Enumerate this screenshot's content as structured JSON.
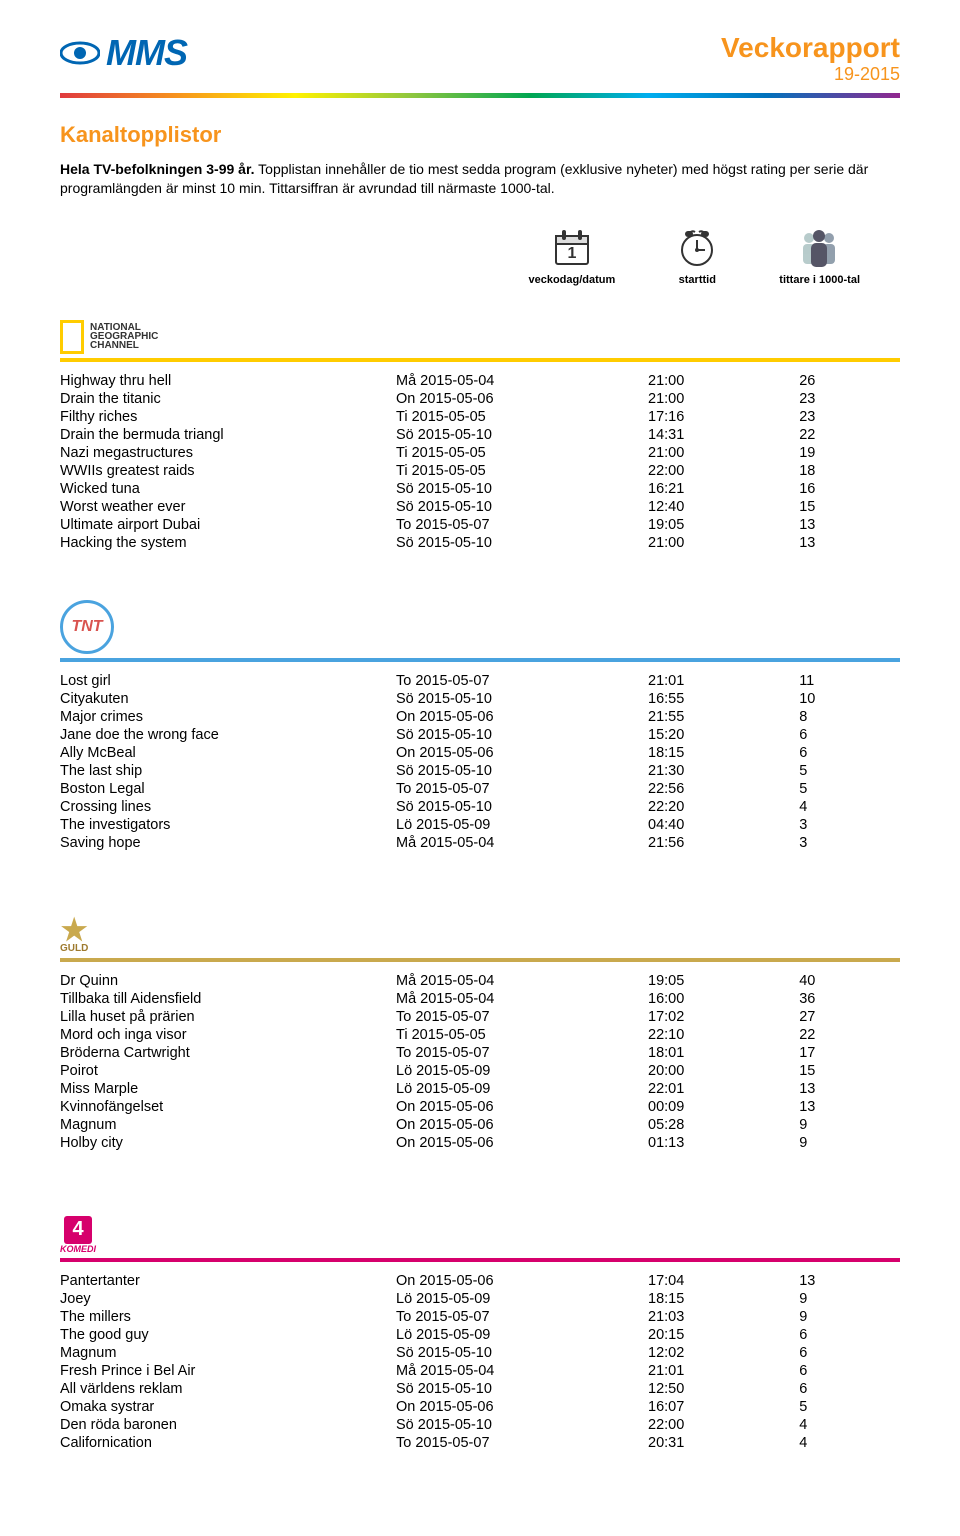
{
  "header": {
    "logo_text": "MMS",
    "report_label": "Veckorapport",
    "report_period": "19-2015",
    "colors": {
      "orange": "#f7941d",
      "blue": "#0066b3"
    }
  },
  "section": {
    "title": "Kanaltopplistor",
    "intro_bold": "Hela TV-befolkningen 3-99 år.",
    "intro_rest": " Topplistan innehåller de tio mest sedda program (exklusive nyheter) med högst rating per serie där programlängden är minst 10 min. Tittarsiffran är avrundad till närmaste 1000-tal."
  },
  "legend": {
    "date_label": "veckodag/datum",
    "time_label": "starttid",
    "viewers_label": "tittare i 1000-tal"
  },
  "channels": [
    {
      "id": "natgeo",
      "divider_color": "#ffcc00",
      "rows": [
        {
          "name": "Highway thru hell",
          "date": "Må 2015-05-04",
          "time": "21:00",
          "viewers": "26"
        },
        {
          "name": "Drain the titanic",
          "date": "On 2015-05-06",
          "time": "21:00",
          "viewers": "23"
        },
        {
          "name": "Filthy riches",
          "date": "Ti 2015-05-05",
          "time": "17:16",
          "viewers": "23"
        },
        {
          "name": "Drain the bermuda triangl",
          "date": "Sö 2015-05-10",
          "time": "14:31",
          "viewers": "22"
        },
        {
          "name": "Nazi megastructures",
          "date": "Ti 2015-05-05",
          "time": "21:00",
          "viewers": "19"
        },
        {
          "name": "WWIIs greatest raids",
          "date": "Ti 2015-05-05",
          "time": "22:00",
          "viewers": "18"
        },
        {
          "name": "Wicked tuna",
          "date": "Sö 2015-05-10",
          "time": "16:21",
          "viewers": "16"
        },
        {
          "name": "Worst weather ever",
          "date": "Sö 2015-05-10",
          "time": "12:40",
          "viewers": "15"
        },
        {
          "name": "Ultimate airport Dubai",
          "date": "To 2015-05-07",
          "time": "19:05",
          "viewers": "13"
        },
        {
          "name": "Hacking the system",
          "date": "Sö 2015-05-10",
          "time": "21:00",
          "viewers": "13"
        }
      ]
    },
    {
      "id": "tnt",
      "divider_color": "#4aa3df",
      "rows": [
        {
          "name": "Lost girl",
          "date": "To 2015-05-07",
          "time": "21:01",
          "viewers": "11"
        },
        {
          "name": "Cityakuten",
          "date": "Sö 2015-05-10",
          "time": "16:55",
          "viewers": "10"
        },
        {
          "name": "Major crimes",
          "date": "On 2015-05-06",
          "time": "21:55",
          "viewers": "8"
        },
        {
          "name": "Jane doe the wrong face",
          "date": "Sö 2015-05-10",
          "time": "15:20",
          "viewers": "6"
        },
        {
          "name": "Ally McBeal",
          "date": "On 2015-05-06",
          "time": "18:15",
          "viewers": "6"
        },
        {
          "name": "The last ship",
          "date": "Sö 2015-05-10",
          "time": "21:30",
          "viewers": "5"
        },
        {
          "name": "Boston Legal",
          "date": "To 2015-05-07",
          "time": "22:56",
          "viewers": "5"
        },
        {
          "name": "Crossing lines",
          "date": "Sö 2015-05-10",
          "time": "22:20",
          "viewers": "4"
        },
        {
          "name": "The investigators",
          "date": "Lö 2015-05-09",
          "time": "04:40",
          "viewers": "3"
        },
        {
          "name": "Saving hope",
          "date": "Må 2015-05-04",
          "time": "21:56",
          "viewers": "3"
        }
      ]
    },
    {
      "id": "guld",
      "divider_color": "#c9a94e",
      "rows": [
        {
          "name": "Dr Quinn",
          "date": "Må 2015-05-04",
          "time": "19:05",
          "viewers": "40"
        },
        {
          "name": "Tillbaka till Aidensfield",
          "date": "Må 2015-05-04",
          "time": "16:00",
          "viewers": "36"
        },
        {
          "name": "Lilla huset på prärien",
          "date": "To 2015-05-07",
          "time": "17:02",
          "viewers": "27"
        },
        {
          "name": "Mord och inga visor",
          "date": "Ti 2015-05-05",
          "time": "22:10",
          "viewers": "22"
        },
        {
          "name": "Bröderna Cartwright",
          "date": "To 2015-05-07",
          "time": "18:01",
          "viewers": "17"
        },
        {
          "name": "Poirot",
          "date": "Lö 2015-05-09",
          "time": "20:00",
          "viewers": "15"
        },
        {
          "name": "Miss Marple",
          "date": "Lö 2015-05-09",
          "time": "22:01",
          "viewers": "13"
        },
        {
          "name": "Kvinnofängelset",
          "date": "On 2015-05-06",
          "time": "00:09",
          "viewers": "13"
        },
        {
          "name": "Magnum",
          "date": "On 2015-05-06",
          "time": "05:28",
          "viewers": "9"
        },
        {
          "name": "Holby city",
          "date": "On 2015-05-06",
          "time": "01:13",
          "viewers": "9"
        }
      ]
    },
    {
      "id": "komedi",
      "divider_color": "#d6006c",
      "rows": [
        {
          "name": "Pantertanter",
          "date": "On 2015-05-06",
          "time": "17:04",
          "viewers": "13"
        },
        {
          "name": "Joey",
          "date": "Lö 2015-05-09",
          "time": "18:15",
          "viewers": "9"
        },
        {
          "name": "The millers",
          "date": "To 2015-05-07",
          "time": "21:03",
          "viewers": "9"
        },
        {
          "name": "The good guy",
          "date": "Lö 2015-05-09",
          "time": "20:15",
          "viewers": "6"
        },
        {
          "name": "Magnum",
          "date": "Sö 2015-05-10",
          "time": "12:02",
          "viewers": "6"
        },
        {
          "name": "Fresh Prince i Bel Air",
          "date": "Må 2015-05-04",
          "time": "21:01",
          "viewers": "6"
        },
        {
          "name": "All världens reklam",
          "date": "Sö 2015-05-10",
          "time": "12:50",
          "viewers": "6"
        },
        {
          "name": "Omaka systrar",
          "date": "On 2015-05-06",
          "time": "16:07",
          "viewers": "5"
        },
        {
          "name": "Den röda baronen",
          "date": "Sö 2015-05-10",
          "time": "22:00",
          "viewers": "4"
        },
        {
          "name": "Californication",
          "date": "To 2015-05-07",
          "time": "20:31",
          "viewers": "4"
        }
      ]
    }
  ]
}
